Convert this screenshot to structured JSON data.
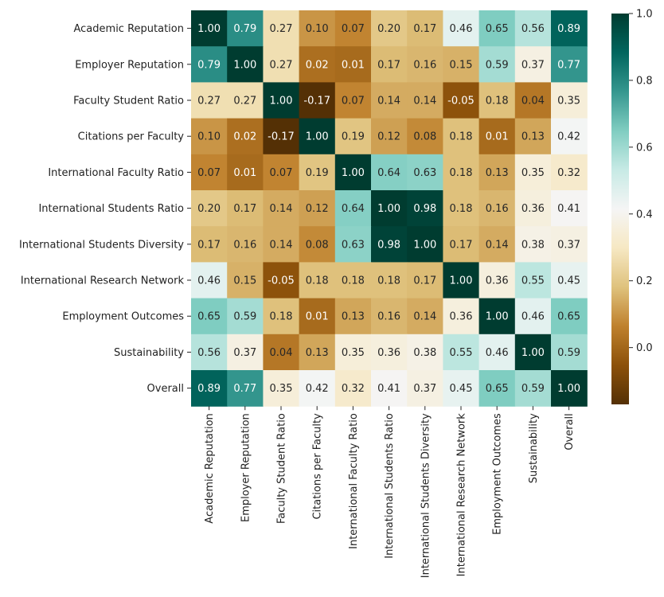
{
  "chart_data": {
    "type": "heatmap",
    "title": "",
    "xlabel": "",
    "ylabel": "",
    "labels": [
      "Academic Reputation",
      "Employer Reputation",
      "Faculty Student Ratio",
      "Citations per Faculty",
      "International Faculty Ratio",
      "International Students Ratio",
      "International Students Diversity",
      "International Research Network",
      "Employment Outcomes",
      "Sustainability",
      "Overall"
    ],
    "values": [
      [
        1.0,
        0.79,
        0.27,
        0.1,
        0.07,
        0.2,
        0.17,
        0.46,
        0.65,
        0.56,
        0.89
      ],
      [
        0.79,
        1.0,
        0.27,
        0.02,
        0.01,
        0.17,
        0.16,
        0.15,
        0.59,
        0.37,
        0.77
      ],
      [
        0.27,
        0.27,
        1.0,
        -0.17,
        0.07,
        0.14,
        0.14,
        -0.05,
        0.18,
        0.04,
        0.35
      ],
      [
        0.1,
        0.02,
        -0.17,
        1.0,
        0.19,
        0.12,
        0.08,
        0.18,
        0.01,
        0.13,
        0.42
      ],
      [
        0.07,
        0.01,
        0.07,
        0.19,
        1.0,
        0.64,
        0.63,
        0.18,
        0.13,
        0.35,
        0.32
      ],
      [
        0.2,
        0.17,
        0.14,
        0.12,
        0.64,
        1.0,
        0.98,
        0.18,
        0.16,
        0.36,
        0.41
      ],
      [
        0.17,
        0.16,
        0.14,
        0.08,
        0.63,
        0.98,
        1.0,
        0.17,
        0.14,
        0.38,
        0.37
      ],
      [
        0.46,
        0.15,
        -0.05,
        0.18,
        0.18,
        0.18,
        0.17,
        1.0,
        0.36,
        0.55,
        0.45
      ],
      [
        0.65,
        0.59,
        0.18,
        0.01,
        0.13,
        0.16,
        0.14,
        0.36,
        1.0,
        0.46,
        0.65
      ],
      [
        0.56,
        0.37,
        0.04,
        0.13,
        0.35,
        0.36,
        0.38,
        0.55,
        0.46,
        1.0,
        0.59
      ],
      [
        0.89,
        0.77,
        0.35,
        0.42,
        0.32,
        0.41,
        0.37,
        0.45,
        0.65,
        0.59,
        1.0
      ]
    ],
    "value_format": "0.00",
    "colormap": "BrBG",
    "colormap_stops": [
      "#543005",
      "#8c510a",
      "#bf812d",
      "#dfc27d",
      "#f6e8c3",
      "#f5f5f5",
      "#c7eae5",
      "#80cdc1",
      "#35978f",
      "#01665e",
      "#003c30"
    ],
    "vmin": -0.17,
    "vmax": 1.0,
    "colorbar": {
      "ticks": [
        0.0,
        0.2,
        0.4,
        0.6,
        0.8,
        1.0
      ],
      "tick_labels": [
        "0.0",
        "0.2",
        "0.4",
        "0.6",
        "0.8",
        "1.0"
      ],
      "placement": "right"
    }
  }
}
